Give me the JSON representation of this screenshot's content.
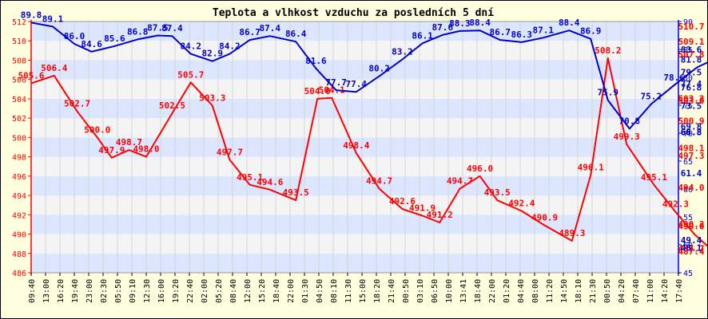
{
  "chart_data": {
    "type": "line",
    "title": "Teplota a vlhkost vzduchu za posledních 5 dní",
    "grid": true,
    "legend": "none",
    "colors": {
      "left": "#ff0000",
      "right": "#0000cc",
      "band": "#dde6ff",
      "background": "#ffffe0"
    },
    "x": [
      "09:40",
      "13:00",
      "16:20",
      "19:40",
      "23:00",
      "02:30",
      "05:50",
      "09:10",
      "12:30",
      "16:00",
      "19:20",
      "22:40",
      "02:00",
      "05:20",
      "08:40",
      "12:00",
      "15:20",
      "18:40",
      "22:00",
      "01:30",
      "04:50",
      "08:10",
      "11:30",
      "15:00",
      "18:20",
      "21:40",
      "00:50",
      "03:10",
      "06:50",
      "10:00",
      "13:41",
      "18:40",
      "22:00",
      "01:20",
      "04:40",
      "08:00",
      "11:20",
      "14:50",
      "18:10",
      "21:30",
      "00:50",
      "04:20",
      "07:40",
      "11:00",
      "14:20",
      "17:40"
    ],
    "y_left_axis": {
      "ticks": [
        "486",
        "488",
        "490",
        "492",
        "494",
        "496",
        "498",
        "500",
        "502",
        "504",
        "506",
        "508",
        "510",
        "512"
      ],
      "ylim": [
        486,
        512
      ]
    },
    "y_right_axis": {
      "ticks": [
        "45",
        "50",
        "55",
        "60",
        "65",
        "70",
        "75",
        "80",
        "85",
        "90"
      ],
      "ylim": [
        45,
        90
      ]
    },
    "series": [
      {
        "axis": "left",
        "color": "#ff0000",
        "points": [
          {
            "x": 0.0,
            "y": 505.6,
            "label": "505.6"
          },
          {
            "x": 1.6,
            "y": 506.4,
            "label": "506.4"
          },
          {
            "x": 3.2,
            "y": 502.7,
            "label": "502.7"
          },
          {
            "x": 4.6,
            "y": 500.0,
            "label": "500.0"
          },
          {
            "x": 5.6,
            "y": 497.9,
            "label": "497.9"
          },
          {
            "x": 6.8,
            "y": 498.7,
            "label": "498.7"
          },
          {
            "x": 8.0,
            "y": 498.0,
            "label": "498.0"
          },
          {
            "x": 9.8,
            "y": 502.5,
            "label": "502.5"
          },
          {
            "x": 11.1,
            "y": 505.7,
            "label": "505.7"
          },
          {
            "x": 12.6,
            "y": 503.3,
            "label": "503.3"
          },
          {
            "x": 13.8,
            "y": 497.7,
            "label": "497.7"
          },
          {
            "x": 15.2,
            "y": 495.1,
            "label": "495.1"
          },
          {
            "x": 16.6,
            "y": 494.6,
            "label": "494.6"
          },
          {
            "x": 18.4,
            "y": 493.5,
            "label": "493.5"
          },
          {
            "x": 19.9,
            "y": 504.0,
            "label": "504.0"
          },
          {
            "x": 20.9,
            "y": 504.1,
            "label": "504.1"
          },
          {
            "x": 22.6,
            "y": 498.4,
            "label": "498.4"
          },
          {
            "x": 24.2,
            "y": 494.7,
            "label": "494.7"
          },
          {
            "x": 25.8,
            "y": 492.6,
            "label": "492.6"
          },
          {
            "x": 27.2,
            "y": 491.9,
            "label": "491.9"
          },
          {
            "x": 28.4,
            "y": 491.2,
            "label": "491.2"
          },
          {
            "x": 29.8,
            "y": 494.7,
            "label": "494.7"
          },
          {
            "x": 31.2,
            "y": 496.0,
            "label": "496.0"
          },
          {
            "x": 32.4,
            "y": 493.5,
            "label": "493.5"
          },
          {
            "x": 34.1,
            "y": 492.4,
            "label": "492.4"
          },
          {
            "x": 35.7,
            "y": 490.9,
            "label": "490.9"
          },
          {
            "x": 37.6,
            "y": 489.3,
            "label": "489.3"
          },
          {
            "x": 38.9,
            "y": 496.1,
            "label": "496.1"
          },
          {
            "x": 40.1,
            "y": 508.2,
            "label": "508.2"
          },
          {
            "x": 41.4,
            "y": 499.3,
            "label": "499.3"
          },
          {
            "x": 43.3,
            "y": 495.1,
            "label": "495.1"
          },
          {
            "x": 44.8,
            "y": 492.3,
            "label": "492.3"
          },
          {
            "x": 46.1,
            "y": 490.0,
            "label": "490.0"
          },
          {
            "x": 47.8,
            "y": 487.7,
            "label": "487.7"
          },
          {
            "x": 49.3,
            "y": 500.9,
            "label": "500.9"
          },
          {
            "x": 50.6,
            "y": 509.1,
            "label": "509.1"
          },
          {
            "x": 51.9,
            "y": 503.0,
            "label": "503.0"
          },
          {
            "x": 53.4,
            "y": 498.1,
            "label": "498.1"
          },
          {
            "x": 55.1,
            "y": 494.0,
            "label": "494.0"
          },
          {
            "x": 56.6,
            "y": 490.2,
            "label": "490.2"
          },
          {
            "x": 58.2,
            "y": 487.4,
            "label": "487.4"
          },
          {
            "x": 59.8,
            "y": 497.3,
            "label": "497.3"
          },
          {
            "x": 61.3,
            "y": 510.7,
            "label": "510.7"
          },
          {
            "x": 62.6,
            "y": 507.8,
            "label": "507.8"
          },
          {
            "x": 64.2,
            "y": 503.2,
            "label": "503.2"
          }
        ]
      },
      {
        "axis": "right",
        "color": "#0000cc",
        "points": [
          {
            "x": 0.0,
            "y": 89.8,
            "label": "89.8"
          },
          {
            "x": 1.5,
            "y": 89.1,
            "label": "89.1"
          },
          {
            "x": 3.0,
            "y": 86.0,
            "label": "86.0"
          },
          {
            "x": 4.2,
            "y": 84.6,
            "label": "84.6"
          },
          {
            "x": 5.8,
            "y": 85.6,
            "label": "85.6"
          },
          {
            "x": 7.4,
            "y": 86.8,
            "label": "86.8"
          },
          {
            "x": 8.8,
            "y": 87.5,
            "label": "87.5"
          },
          {
            "x": 9.8,
            "y": 87.4,
            "label": "87.4"
          },
          {
            "x": 11.1,
            "y": 84.2,
            "label": "84.2"
          },
          {
            "x": 12.6,
            "y": 82.9,
            "label": "82.9"
          },
          {
            "x": 13.8,
            "y": 84.2,
            "label": "84.2"
          },
          {
            "x": 15.2,
            "y": 86.7,
            "label": "86.7"
          },
          {
            "x": 16.6,
            "y": 87.4,
            "label": "87.4"
          },
          {
            "x": 18.4,
            "y": 86.4,
            "label": "86.4"
          },
          {
            "x": 19.8,
            "y": 81.6,
            "label": "81.6"
          },
          {
            "x": 21.2,
            "y": 77.7,
            "label": "77.7"
          },
          {
            "x": 22.6,
            "y": 77.4,
            "label": "77.4"
          },
          {
            "x": 24.2,
            "y": 80.2,
            "label": "80.2"
          },
          {
            "x": 25.8,
            "y": 83.2,
            "label": "83.2"
          },
          {
            "x": 27.2,
            "y": 86.1,
            "label": "86.1"
          },
          {
            "x": 28.6,
            "y": 87.6,
            "label": "87.6"
          },
          {
            "x": 29.8,
            "y": 88.3,
            "label": "88.3"
          },
          {
            "x": 31.2,
            "y": 88.4,
            "label": "88.4"
          },
          {
            "x": 32.6,
            "y": 86.7,
            "label": "86.7"
          },
          {
            "x": 34.1,
            "y": 86.3,
            "label": "86.3"
          },
          {
            "x": 35.6,
            "y": 87.1,
            "label": "87.1"
          },
          {
            "x": 37.4,
            "y": 88.4,
            "label": "88.4"
          },
          {
            "x": 38.9,
            "y": 86.9,
            "label": "86.9"
          },
          {
            "x": 40.1,
            "y": 75.9,
            "label": "75.9"
          },
          {
            "x": 41.6,
            "y": 70.8,
            "label": "70.8"
          },
          {
            "x": 43.1,
            "y": 75.2,
            "label": "75.2"
          },
          {
            "x": 44.7,
            "y": 78.6,
            "label": "78.6"
          },
          {
            "x": 46.3,
            "y": 81.8,
            "label": "81.8"
          },
          {
            "x": 47.8,
            "y": 83.6,
            "label": "83.6"
          },
          {
            "x": 49.3,
            "y": 79.5,
            "label": "79.5"
          },
          {
            "x": 50.6,
            "y": 68.8,
            "label": "68.8"
          },
          {
            "x": 51.9,
            "y": 68.8,
            "label": "68.8"
          },
          {
            "x": 53.4,
            "y": 68.8,
            "label": "68.8"
          },
          {
            "x": 55.1,
            "y": 69.8,
            "label": "69.8"
          },
          {
            "x": 56.6,
            "y": 73.5,
            "label": "73.5"
          },
          {
            "x": 58.2,
            "y": 77.4,
            "label": "77.4"
          },
          {
            "x": 59.6,
            "y": 76.8,
            "label": "76.8"
          },
          {
            "x": 61.3,
            "y": 61.4,
            "label": "61.4"
          },
          {
            "x": 62.6,
            "y": 49.4,
            "label": "49.4"
          },
          {
            "x": 64.0,
            "y": 48.1,
            "label": "48.1"
          }
        ]
      }
    ]
  }
}
